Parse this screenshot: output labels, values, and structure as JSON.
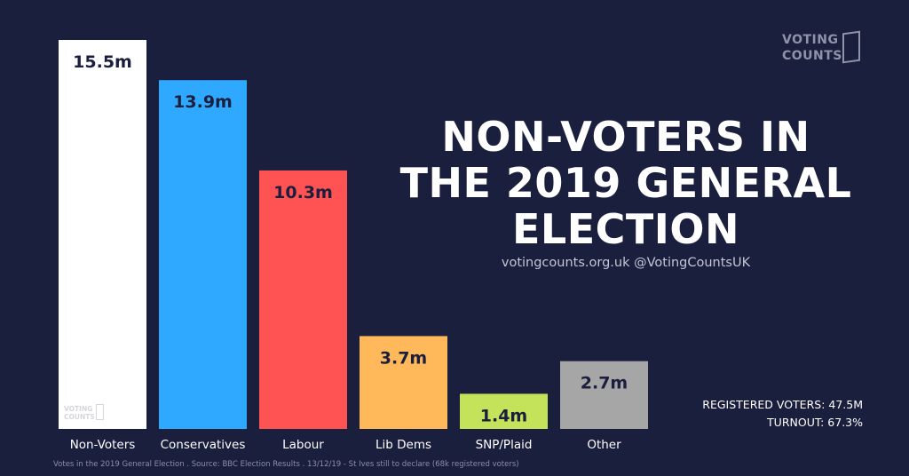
{
  "chart_data": {
    "type": "bar",
    "categories": [
      "Non-Voters",
      "Conservatives",
      "Labour",
      "Lib Dems",
      "SNP/Plaid",
      "Other"
    ],
    "values": [
      15.5,
      13.9,
      10.3,
      3.7,
      1.4,
      2.7
    ],
    "value_labels": [
      "15.5m",
      "13.9m",
      "10.3m",
      "3.7m",
      "1.4m",
      "2.7m"
    ],
    "colors": [
      "#ffffff",
      "#2ea9ff",
      "#ff5252",
      "#ffb95a",
      "#c5e35a",
      "#a6a6a6"
    ],
    "ylim": [
      0,
      15.5
    ],
    "grid": false,
    "title": "NON-VOTERS IN THE 2019 GENERAL ELECTION"
  },
  "header": {
    "title_lines": [
      "NON-VOTERS IN",
      "THE 2019 GENERAL",
      "ELECTION"
    ],
    "subtitle": "votingcounts.org.uk @VotingCountsUK"
  },
  "stats": {
    "registered": "REGISTERED VOTERS: 47.5M",
    "turnout": "TURNOUT: 67.3%"
  },
  "footer": {
    "source": "Votes in the 2019 General Election . Source: BBC Election Results . 13/12/19 - St Ives still to declare (68k registered voters)"
  },
  "logo": {
    "line1": "VOTING",
    "line2": "COUNTS",
    "icon": "ballot-box-icon"
  },
  "colors": {
    "background": "#1b1f3e"
  }
}
